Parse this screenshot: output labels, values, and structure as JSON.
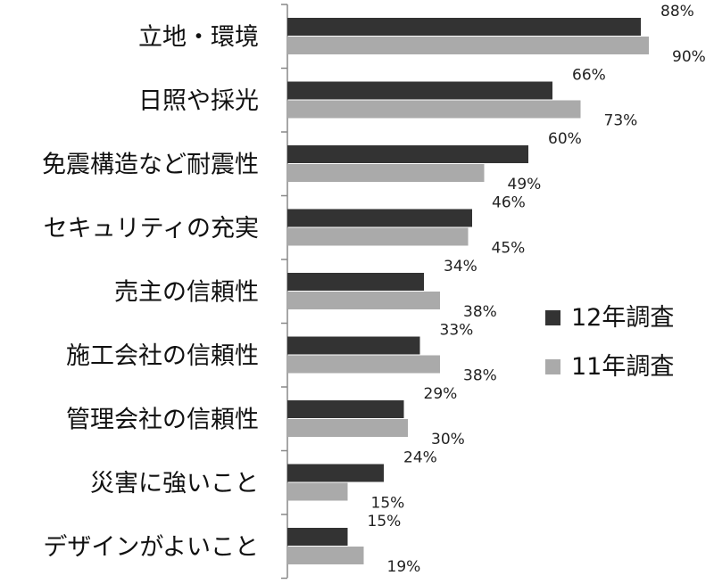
{
  "chart_data": {
    "type": "bar",
    "orientation": "horizontal",
    "categories": [
      "立地・環境",
      "日照や採光",
      "免震構造など耐震性",
      "セキュリティの充実",
      "売主の信頼性",
      "施工会社の信頼性",
      "管理会社の信頼性",
      "災害に強いこと",
      "デザインがよいこと"
    ],
    "series": [
      {
        "name": "12年調査",
        "color": "#333333",
        "values": [
          88,
          66,
          60,
          46,
          34,
          33,
          29,
          24,
          15
        ],
        "labels": [
          "88%",
          "66%",
          "60%",
          "46%",
          "34%",
          "33%",
          "29%",
          "24%",
          "15%"
        ]
      },
      {
        "name": "11年調査",
        "color": "#aaaaaa",
        "values": [
          90,
          73,
          49,
          45,
          38,
          38,
          30,
          15,
          19
        ],
        "labels": [
          "90%",
          "73%",
          "49%",
          "45%",
          "38%",
          "38%",
          "30%",
          "15%",
          "19%"
        ]
      }
    ],
    "xlim": [
      0,
      100
    ],
    "legend_position": "right",
    "grid": false,
    "title": "",
    "xlabel": "",
    "ylabel": ""
  }
}
